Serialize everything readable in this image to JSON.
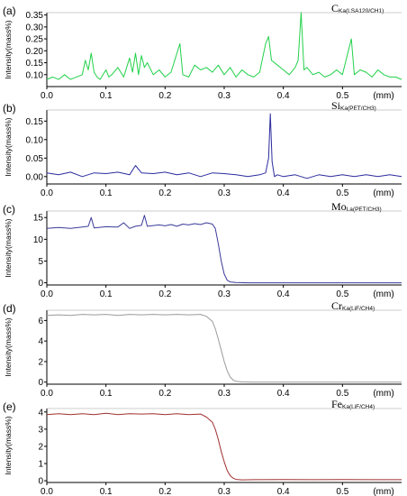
{
  "chart_data": [
    {
      "type": "line",
      "panel_label": "(a)",
      "element": "C",
      "element_sub": "Ka(LSA120/CH1)",
      "ylabel": "Intensity(mass%)",
      "xunit": "(mm)",
      "xlim": [
        0,
        0.6
      ],
      "ylim": [
        0.05,
        0.36
      ],
      "xticks": [
        0.0,
        0.1,
        0.2,
        0.3,
        0.4,
        0.5
      ],
      "xtick_labels": [
        "0.0",
        "0.1",
        "0.2",
        "0.3",
        "0.4",
        "0.5"
      ],
      "yticks": [
        0.1,
        0.15,
        0.2,
        0.25,
        0.3,
        0.35
      ],
      "ytick_labels": [
        "0.10",
        "0.15",
        "0.20",
        "0.25",
        "0.30",
        "0.35"
      ],
      "color": "#22d14a",
      "series": [
        {
          "x": [
            0.0,
            0.01,
            0.02,
            0.03,
            0.04,
            0.05,
            0.06,
            0.065,
            0.07,
            0.075,
            0.08,
            0.085,
            0.09,
            0.1,
            0.105,
            0.11,
            0.12,
            0.13,
            0.14,
            0.145,
            0.15,
            0.155,
            0.16,
            0.165,
            0.17,
            0.18,
            0.19,
            0.2,
            0.21,
            0.22,
            0.225,
            0.23,
            0.24,
            0.25,
            0.26,
            0.27,
            0.28,
            0.29,
            0.3,
            0.31,
            0.32,
            0.33,
            0.34,
            0.35,
            0.36,
            0.37,
            0.375,
            0.38,
            0.39,
            0.4,
            0.41,
            0.42,
            0.425,
            0.43,
            0.435,
            0.44,
            0.45,
            0.46,
            0.47,
            0.48,
            0.49,
            0.5,
            0.51,
            0.515,
            0.52,
            0.53,
            0.54,
            0.55,
            0.56,
            0.57,
            0.58,
            0.59,
            0.6
          ],
          "y": [
            0.08,
            0.09,
            0.08,
            0.1,
            0.08,
            0.09,
            0.1,
            0.16,
            0.12,
            0.19,
            0.11,
            0.09,
            0.08,
            0.12,
            0.09,
            0.1,
            0.13,
            0.09,
            0.17,
            0.11,
            0.19,
            0.1,
            0.18,
            0.13,
            0.15,
            0.1,
            0.12,
            0.09,
            0.11,
            0.19,
            0.23,
            0.1,
            0.09,
            0.14,
            0.12,
            0.13,
            0.11,
            0.14,
            0.1,
            0.13,
            0.09,
            0.12,
            0.1,
            0.09,
            0.11,
            0.23,
            0.26,
            0.16,
            0.14,
            0.12,
            0.1,
            0.13,
            0.16,
            0.36,
            0.12,
            0.13,
            0.1,
            0.11,
            0.09,
            0.1,
            0.12,
            0.1,
            0.2,
            0.25,
            0.1,
            0.12,
            0.11,
            0.09,
            0.12,
            0.1,
            0.09,
            0.09,
            0.08
          ]
        }
      ]
    },
    {
      "type": "line",
      "panel_label": "(b)",
      "element": "Si",
      "element_sub": "Ka(PET/CH3)",
      "ylabel": "Intensity(mass%)",
      "xunit": "(mm)",
      "xlim": [
        0,
        0.6
      ],
      "ylim": [
        -0.02,
        0.18
      ],
      "xticks": [
        0.0,
        0.1,
        0.2,
        0.3,
        0.4,
        0.5
      ],
      "xtick_labels": [
        "0.0",
        "0.1",
        "0.2",
        "0.3",
        "0.4",
        "0.5"
      ],
      "yticks": [
        0.0,
        0.05,
        0.1,
        0.15
      ],
      "ytick_labels": [
        "0.00",
        "0.05",
        "0.10",
        "0.15"
      ],
      "color": "#2b2b9e",
      "series": [
        {
          "x": [
            0.0,
            0.02,
            0.04,
            0.06,
            0.08,
            0.1,
            0.12,
            0.14,
            0.15,
            0.16,
            0.18,
            0.2,
            0.22,
            0.24,
            0.26,
            0.28,
            0.3,
            0.32,
            0.34,
            0.36,
            0.37,
            0.375,
            0.378,
            0.381,
            0.385,
            0.39,
            0.4,
            0.42,
            0.44,
            0.46,
            0.48,
            0.5,
            0.52,
            0.54,
            0.56,
            0.58,
            0.6
          ],
          "y": [
            0.01,
            0.005,
            0.012,
            0.0,
            0.01,
            0.008,
            0.012,
            0.005,
            0.03,
            0.01,
            0.008,
            0.012,
            0.005,
            0.01,
            0.0,
            0.01,
            0.008,
            0.005,
            0.0,
            0.005,
            0.01,
            0.05,
            0.17,
            0.04,
            0.0,
            0.005,
            0.0,
            0.005,
            -0.005,
            0.005,
            0.0,
            0.005,
            0.0,
            0.005,
            0.0,
            0.005,
            0.0
          ]
        }
      ]
    },
    {
      "type": "line",
      "panel_label": "(c)",
      "element": "Mo",
      "element_sub": "La(PET/CH3)",
      "ylabel": "Intensity(mass%)",
      "xunit": "(mm)",
      "xlim": [
        0,
        0.6
      ],
      "ylim": [
        -0.5,
        16.5
      ],
      "xticks": [
        0.0,
        0.1,
        0.2,
        0.3,
        0.4,
        0.5
      ],
      "xtick_labels": [
        "0.0",
        "0.1",
        "0.2",
        "0.3",
        "0.4",
        "0.5"
      ],
      "yticks": [
        0,
        5,
        10,
        15
      ],
      "ytick_labels": [
        "0",
        "5",
        "10",
        "15"
      ],
      "color": "#3b3b9a",
      "series": [
        {
          "x": [
            0.0,
            0.02,
            0.04,
            0.06,
            0.07,
            0.075,
            0.08,
            0.1,
            0.12,
            0.13,
            0.14,
            0.15,
            0.16,
            0.165,
            0.17,
            0.19,
            0.2,
            0.21,
            0.22,
            0.23,
            0.24,
            0.25,
            0.26,
            0.27,
            0.28,
            0.285,
            0.29,
            0.295,
            0.3,
            0.305,
            0.31,
            0.32,
            0.34,
            0.36,
            0.38,
            0.4,
            0.45,
            0.5,
            0.55,
            0.6
          ],
          "y": [
            12.5,
            12.7,
            12.5,
            12.8,
            13.0,
            15.0,
            12.6,
            12.9,
            12.8,
            13.8,
            12.5,
            13.0,
            13.2,
            15.5,
            13.0,
            13.3,
            13.1,
            13.4,
            13.0,
            13.5,
            13.3,
            13.6,
            13.4,
            13.8,
            13.5,
            12.5,
            9.0,
            5.0,
            2.0,
            0.6,
            0.2,
            0.05,
            0.0,
            0.0,
            0.0,
            0.0,
            0.0,
            0.0,
            0.0,
            0.0
          ]
        }
      ]
    },
    {
      "type": "line",
      "panel_label": "(d)",
      "element": "Cr",
      "element_sub": "Ka(LiF/CH4)",
      "ylabel": "Intensity(mass%)",
      "xunit": "(mm)",
      "xlim": [
        0,
        0.6
      ],
      "ylim": [
        -0.2,
        7.0
      ],
      "xticks": [
        0.0,
        0.1,
        0.2,
        0.3,
        0.4,
        0.5
      ],
      "xtick_labels": [
        "0.0",
        "0.1",
        "0.2",
        "0.3",
        "0.4",
        "0.5"
      ],
      "yticks": [
        0,
        2,
        4,
        6
      ],
      "ytick_labels": [
        "0",
        "2",
        "4",
        "6"
      ],
      "color": "#9a9a9a",
      "series": [
        {
          "x": [
            0.0,
            0.02,
            0.04,
            0.06,
            0.08,
            0.1,
            0.12,
            0.14,
            0.16,
            0.18,
            0.2,
            0.22,
            0.24,
            0.26,
            0.27,
            0.28,
            0.285,
            0.29,
            0.295,
            0.3,
            0.305,
            0.31,
            0.315,
            0.32,
            0.33,
            0.35,
            0.4,
            0.45,
            0.5,
            0.55,
            0.6
          ],
          "y": [
            6.5,
            6.55,
            6.5,
            6.6,
            6.55,
            6.6,
            6.5,
            6.6,
            6.55,
            6.6,
            6.55,
            6.6,
            6.55,
            6.6,
            6.4,
            5.9,
            5.2,
            4.2,
            3.1,
            2.0,
            1.1,
            0.5,
            0.2,
            0.08,
            0.02,
            0.0,
            0.0,
            0.0,
            0.0,
            0.0,
            0.0
          ]
        }
      ]
    },
    {
      "type": "line",
      "panel_label": "(e)",
      "element": "Fe",
      "element_sub": "Ka(LiF/CH4)",
      "ylabel": "Intensity(mass%)",
      "xunit": "(mm)",
      "xlim": [
        0,
        0.6
      ],
      "ylim": [
        -0.1,
        4.2
      ],
      "xticks": [
        0.0,
        0.1,
        0.2,
        0.3,
        0.4,
        0.5
      ],
      "xtick_labels": [
        "0.0",
        "0.1",
        "0.2",
        "0.3",
        "0.4",
        "0.5"
      ],
      "yticks": [
        0,
        1,
        2,
        3,
        4
      ],
      "ytick_labels": [
        "0",
        "1",
        "2",
        "3",
        "4"
      ],
      "color": "#a03030",
      "series": [
        {
          "x": [
            0.0,
            0.02,
            0.04,
            0.06,
            0.08,
            0.1,
            0.12,
            0.14,
            0.16,
            0.18,
            0.2,
            0.22,
            0.24,
            0.26,
            0.27,
            0.28,
            0.285,
            0.29,
            0.295,
            0.3,
            0.305,
            0.31,
            0.315,
            0.32,
            0.33,
            0.35,
            0.4,
            0.45,
            0.5,
            0.55,
            0.6
          ],
          "y": [
            3.85,
            3.9,
            3.85,
            3.9,
            3.85,
            3.92,
            3.85,
            3.9,
            3.88,
            3.9,
            3.85,
            3.9,
            3.85,
            3.88,
            3.7,
            3.4,
            3.0,
            2.4,
            1.7,
            1.1,
            0.6,
            0.3,
            0.15,
            0.08,
            0.05,
            0.06,
            0.07,
            0.06,
            0.07,
            0.06,
            0.06
          ]
        }
      ]
    }
  ]
}
